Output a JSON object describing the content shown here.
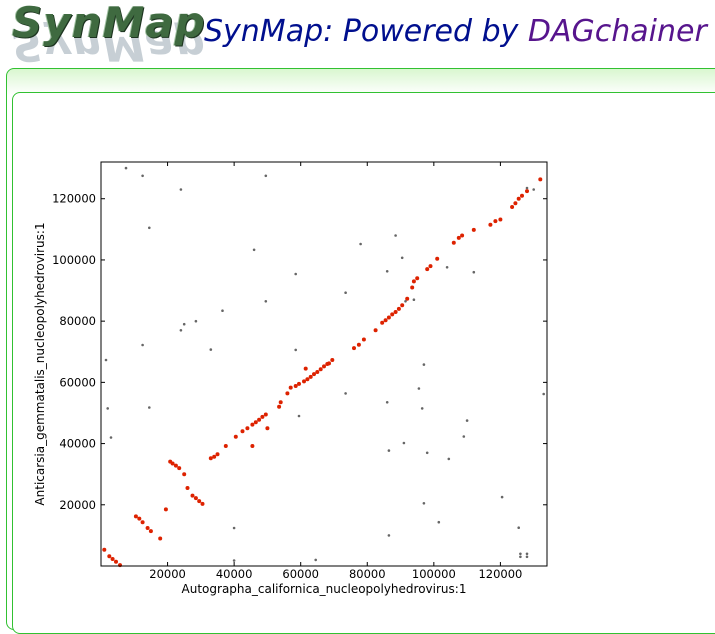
{
  "header": {
    "logo_text": "SynMap",
    "title_prefix": "SynMap: Powered by ",
    "title_highlight": "DAGchainer",
    "colors": {
      "title": "#000f8e",
      "highlight": "#57158d",
      "panel_border": "#31c131"
    }
  },
  "chart_data": {
    "type": "scatter",
    "title": "",
    "xlabel": "Autographa_californica_nucleopolyhedrovirus:1",
    "ylabel": "Anticarsia_gemmatalis_nucleopolyhedrovirus:1",
    "xlim": [
      0,
      134000
    ],
    "ylim": [
      0,
      132000
    ],
    "xticks": [
      20000,
      40000,
      60000,
      80000,
      100000,
      120000
    ],
    "yticks": [
      20000,
      40000,
      60000,
      80000,
      100000,
      120000
    ],
    "grid": false,
    "series": [
      {
        "color": "#dd2200",
        "points": [
          [
            1000,
            5300
          ],
          [
            2500,
            3200
          ],
          [
            3500,
            2300
          ],
          [
            4500,
            1400
          ],
          [
            5700,
            300
          ],
          [
            10500,
            16200
          ],
          [
            11500,
            15500
          ],
          [
            12500,
            14300
          ],
          [
            14000,
            12400
          ],
          [
            15000,
            11400
          ],
          [
            17800,
            9000
          ],
          [
            19500,
            18500
          ],
          [
            20800,
            34100
          ],
          [
            21500,
            33500
          ],
          [
            22500,
            32800
          ],
          [
            23500,
            32000
          ],
          [
            25000,
            30000
          ],
          [
            26000,
            25500
          ],
          [
            27500,
            23000
          ],
          [
            28500,
            22200
          ],
          [
            29500,
            21200
          ],
          [
            30500,
            20300
          ],
          [
            33000,
            35200
          ],
          [
            34000,
            35700
          ],
          [
            35000,
            36500
          ],
          [
            37500,
            39200
          ],
          [
            40500,
            42200
          ],
          [
            42500,
            44000
          ],
          [
            44000,
            45000
          ],
          [
            45500,
            46200
          ],
          [
            46500,
            47000
          ],
          [
            47500,
            47800
          ],
          [
            48500,
            48700
          ],
          [
            49500,
            49500
          ],
          [
            45500,
            39200
          ],
          [
            50000,
            45000
          ],
          [
            53500,
            52000
          ],
          [
            54000,
            53500
          ],
          [
            56000,
            56400
          ],
          [
            57000,
            58300
          ],
          [
            58500,
            58800
          ],
          [
            59500,
            59500
          ],
          [
            61000,
            60300
          ],
          [
            62000,
            61000
          ],
          [
            63000,
            61800
          ],
          [
            64000,
            62700
          ],
          [
            65000,
            63400
          ],
          [
            66000,
            64300
          ],
          [
            67000,
            65200
          ],
          [
            68000,
            66000
          ],
          [
            69500,
            67300
          ],
          [
            76000,
            71200
          ],
          [
            77500,
            72300
          ],
          [
            79000,
            74000
          ],
          [
            82500,
            77000
          ],
          [
            84500,
            79500
          ],
          [
            85500,
            80300
          ],
          [
            86500,
            81200
          ],
          [
            87500,
            82200
          ],
          [
            88500,
            83000
          ],
          [
            89500,
            84000
          ],
          [
            90500,
            85200
          ],
          [
            92000,
            87300
          ],
          [
            93500,
            91000
          ],
          [
            94000,
            93000
          ],
          [
            95000,
            94000
          ],
          [
            98000,
            97000
          ],
          [
            99000,
            98000
          ],
          [
            101000,
            100400
          ],
          [
            106000,
            105600
          ],
          [
            107500,
            107200
          ],
          [
            108500,
            108000
          ],
          [
            112000,
            109800
          ],
          [
            117000,
            111500
          ],
          [
            118500,
            112700
          ],
          [
            120000,
            113200
          ],
          [
            123500,
            117300
          ],
          [
            124500,
            118500
          ],
          [
            125500,
            120000
          ],
          [
            126500,
            121000
          ],
          [
            128000,
            122500
          ],
          [
            132000,
            126300
          ],
          [
            61500,
            64500
          ],
          [
            68500,
            66200
          ]
        ]
      },
      {
        "color": "#666666",
        "points": [
          [
            7500,
            130000
          ],
          [
            12500,
            127500
          ],
          [
            24000,
            123000
          ],
          [
            49500,
            127500
          ],
          [
            128000,
            123500
          ],
          [
            130000,
            123000
          ],
          [
            14500,
            110500
          ],
          [
            46000,
            103300
          ],
          [
            78000,
            105200
          ],
          [
            88500,
            108000
          ],
          [
            112000,
            96000
          ],
          [
            90500,
            100700
          ],
          [
            86000,
            96300
          ],
          [
            58500,
            95400
          ],
          [
            104000,
            97600
          ],
          [
            49500,
            86500
          ],
          [
            73500,
            89300
          ],
          [
            91500,
            86500
          ],
          [
            94000,
            87000
          ],
          [
            36500,
            83400
          ],
          [
            25000,
            79000
          ],
          [
            28500,
            80000
          ],
          [
            24000,
            77000
          ],
          [
            12500,
            72200
          ],
          [
            33000,
            70700
          ],
          [
            58500,
            70600
          ],
          [
            97000,
            65800
          ],
          [
            1500,
            67300
          ],
          [
            73500,
            56400
          ],
          [
            95500,
            58000
          ],
          [
            86000,
            53500
          ],
          [
            2000,
            51500
          ],
          [
            14500,
            51800
          ],
          [
            59500,
            49000
          ],
          [
            96500,
            51500
          ],
          [
            110000,
            47500
          ],
          [
            3000,
            42000
          ],
          [
            91000,
            40200
          ],
          [
            104500,
            35000
          ],
          [
            109000,
            42300
          ],
          [
            86500,
            37700
          ],
          [
            98000,
            37000
          ],
          [
            97000,
            20500
          ],
          [
            120500,
            22500
          ],
          [
            86500,
            10000
          ],
          [
            101500,
            14300
          ],
          [
            40000,
            12400
          ],
          [
            125500,
            12500
          ],
          [
            40000,
            1800
          ],
          [
            64500,
            2000
          ],
          [
            126000,
            4000
          ],
          [
            128000,
            4000
          ],
          [
            126000,
            3000
          ],
          [
            128000,
            3000
          ],
          [
            133000,
            56200
          ]
        ]
      }
    ]
  }
}
